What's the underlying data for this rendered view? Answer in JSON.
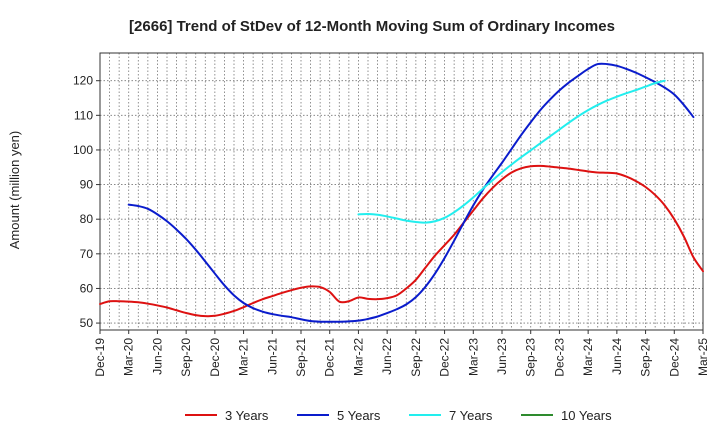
{
  "chart_data": {
    "type": "line",
    "title": "[2666]  Trend of StDev of 12-Month Moving Sum of Ordinary Incomes",
    "xlabel": "",
    "ylabel": "Amount (million yen)",
    "ylim": [
      48,
      128
    ],
    "yticks": [
      50,
      60,
      70,
      80,
      90,
      100,
      110,
      120
    ],
    "x_tick_labels": [
      "Dec-19",
      "Mar-20",
      "Jun-20",
      "Sep-20",
      "Dec-20",
      "Mar-21",
      "Jun-21",
      "Sep-21",
      "Dec-21",
      "Mar-22",
      "Jun-22",
      "Sep-22",
      "Dec-22",
      "Mar-23",
      "Jun-23",
      "Sep-23",
      "Dec-23",
      "Mar-24",
      "Jun-24",
      "Sep-24",
      "Dec-24",
      "Mar-25"
    ],
    "grid": true,
    "legend_position": "bottom",
    "series": [
      {
        "name": "3 Years",
        "color": "#dd1111",
        "start_index": 0,
        "values": [
          55.5,
          56.3,
          56.3,
          56.2,
          56.0,
          55.6,
          55.1,
          54.5,
          53.7,
          52.9,
          52.3,
          52.0,
          52.1,
          52.7,
          53.5,
          54.6,
          55.8,
          56.9,
          57.8,
          58.7,
          59.5,
          60.2,
          60.6,
          60.4,
          59.0,
          56.2,
          56.3,
          57.4,
          57.0,
          56.9,
          57.2,
          58.0,
          60.0,
          62.5,
          66.0,
          69.5,
          72.5,
          75.5,
          79.0,
          82.5,
          86.0,
          89.0,
          91.5,
          93.5,
          94.7,
          95.3,
          95.4,
          95.2,
          94.9,
          94.6,
          94.2,
          93.8,
          93.5,
          93.4,
          93.2,
          92.3,
          91.0,
          89.3,
          87.0,
          84.0,
          80.0,
          75.0,
          69.0,
          65.0
        ]
      },
      {
        "name": "5 Years",
        "color": "#0a1ccc",
        "start_index": 3,
        "values": [
          84.2,
          83.8,
          83.0,
          81.4,
          79.4,
          77.0,
          74.3,
          71.2,
          67.8,
          64.3,
          60.9,
          58.0,
          55.8,
          54.3,
          53.3,
          52.6,
          52.1,
          51.7,
          51.1,
          50.6,
          50.4,
          50.4,
          50.4,
          50.5,
          50.7,
          51.2,
          51.9,
          52.9,
          54.0,
          55.4,
          57.5,
          60.5,
          64.3,
          68.8,
          73.8,
          79.0,
          84.0,
          88.5,
          92.5,
          96.3,
          100.3,
          104.3,
          108.0,
          111.5,
          114.5,
          117.2,
          119.5,
          121.5,
          123.4,
          124.8,
          124.8,
          124.3,
          123.4,
          122.3,
          121.0,
          119.6,
          118.0,
          116.0,
          113.0,
          109.5
        ]
      },
      {
        "name": "7 Years",
        "color": "#22eeee",
        "start_index": 27,
        "values": [
          81.4,
          81.5,
          81.3,
          80.8,
          80.2,
          79.6,
          79.2,
          79.0,
          79.4,
          80.4,
          82.0,
          84.0,
          86.3,
          88.8,
          91.2,
          93.6,
          95.8,
          97.9,
          99.9,
          101.9,
          103.9,
          105.9,
          107.9,
          109.8,
          111.5,
          113.0,
          114.3,
          115.4,
          116.4,
          117.3,
          118.3,
          119.3,
          120.0
        ]
      },
      {
        "name": "10 Years",
        "color": "#2e8b2e",
        "start_index": 0,
        "values": []
      }
    ]
  }
}
